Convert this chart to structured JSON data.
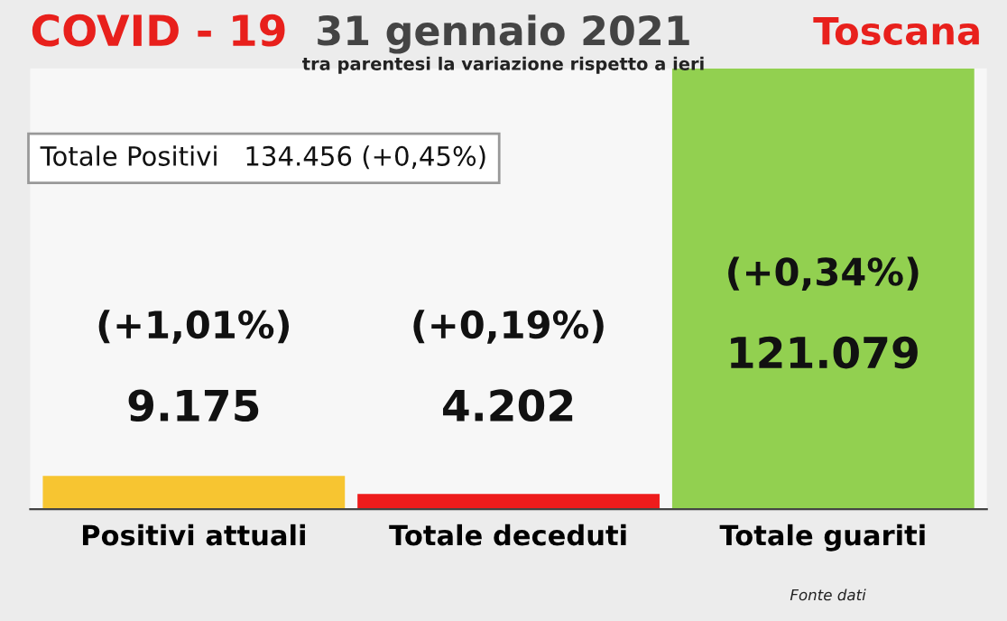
{
  "chart_data": {
    "type": "bar",
    "title": "COVID - 19",
    "subtitle": "tra parentesi la variazione rispetto a ieri",
    "categories": [
      "Positivi attuali",
      "Totale deceduti",
      "Totale guariti"
    ],
    "values": [
      9175,
      4202,
      121079
    ],
    "colors": [
      "#f7c531",
      "#ee1c1c",
      "#92d050"
    ],
    "value_labels": [
      "9.175",
      "4.202",
      "121.079"
    ],
    "annotations": [
      "31 gennaio 2021",
      "Toscana",
      "Totale Positivi   134.456 (+0,45%)",
      "Fonte dati",
      "(+1,01%)",
      "(+0,19%)",
      "(+0,34%)"
    ]
  }
}
